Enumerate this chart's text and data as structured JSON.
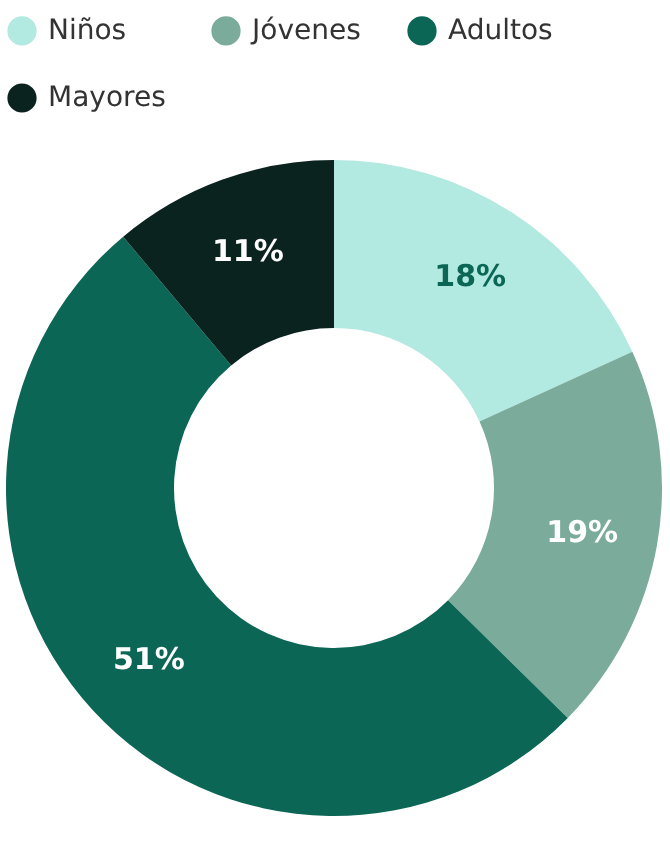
{
  "chart_data": {
    "type": "donut",
    "categories": [
      "Niños",
      "Jóvenes",
      "Adultos",
      "Mayores"
    ],
    "values": [
      18,
      19,
      51,
      11
    ],
    "colors": [
      "#b2e9e0",
      "#7aab9b",
      "#0b6655",
      "#0b231f"
    ],
    "value_labels": [
      "18%",
      "19%",
      "51%",
      "11%"
    ],
    "legend": "top"
  }
}
